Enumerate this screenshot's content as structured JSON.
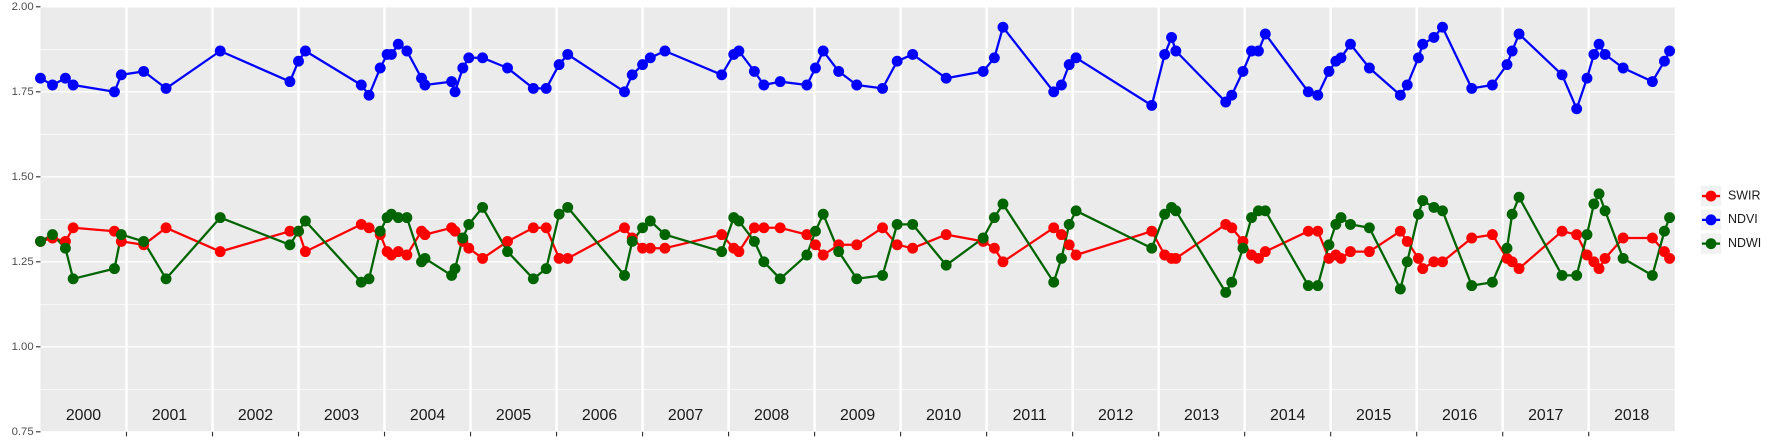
{
  "chart_data": {
    "type": "line",
    "xlim": [
      2000,
      2019
    ],
    "xticks": [
      2001,
      2002,
      2003,
      2004,
      2005,
      2006,
      2007,
      2008,
      2009,
      2010,
      2011,
      2012,
      2013,
      2014,
      2015,
      2016,
      2017,
      2018
    ],
    "year_labels": [
      "2000",
      "2001",
      "2002",
      "2003",
      "2004",
      "2005",
      "2006",
      "2007",
      "2008",
      "2009",
      "2010",
      "2011",
      "2012",
      "2013",
      "2014",
      "2015",
      "2016",
      "2017",
      "2018"
    ],
    "ylim": [
      0.75,
      2.0
    ],
    "yticks": [
      {
        "value": 0.75,
        "label": "0.75"
      },
      {
        "value": 1.0,
        "label": "1.00"
      },
      {
        "value": 1.25,
        "label": "1.25"
      },
      {
        "value": 1.5,
        "label": "1.50"
      },
      {
        "value": 1.75,
        "label": "1.75"
      },
      {
        "value": 2.0,
        "label": "2.00"
      }
    ],
    "grid": true,
    "legend": "right",
    "x": [
      2000,
      2000.14,
      2000.29,
      2000.38,
      2000.86,
      2000.94,
      2001.2,
      2001.46,
      2002.09,
      2002.9,
      2003,
      2003.08,
      2003.73,
      2003.82,
      2003.95,
      2004.03,
      2004.08,
      2004.16,
      2004.26,
      2004.43,
      2004.47,
      2004.78,
      2004.82,
      2004.91,
      2004.98,
      2005.14,
      2005.43,
      2005.73,
      2005.88,
      2006.03,
      2006.13,
      2006.79,
      2006.88,
      2007,
      2007.09,
      2007.26,
      2007.92,
      2008.06,
      2008.12,
      2008.3,
      2008.41,
      2008.6,
      2008.91,
      2009.01,
      2009.1,
      2009.28,
      2009.49,
      2009.79,
      2009.96,
      2010.14,
      2010.53,
      2010.96,
      2011.09,
      2011.19,
      2011.78,
      2011.87,
      2011.96,
      2012.04,
      2012.92,
      2013.07,
      2013.15,
      2013.2,
      2013.78,
      2013.85,
      2013.98,
      2014.08,
      2014.16,
      2014.24,
      2014.74,
      2014.85,
      2014.98,
      2015.06,
      2015.12,
      2015.23,
      2015.45,
      2015.81,
      2015.89,
      2016.02,
      2016.07,
      2016.2,
      2016.3,
      2016.64,
      2016.88,
      2017.05,
      2017.11,
      2017.19,
      2017.69,
      2017.86,
      2017.98,
      2018.06,
      2018.12,
      2018.19,
      2018.4,
      2018.74,
      2018.88,
      2018.94
    ],
    "series": [
      {
        "name": "SWIR",
        "color": "#ff0000",
        "values": [
          1.31,
          1.32,
          1.31,
          1.35,
          1.34,
          1.31,
          1.3,
          1.35,
          1.28,
          1.34,
          1.34,
          1.28,
          1.36,
          1.35,
          1.33,
          1.28,
          1.27,
          1.28,
          1.27,
          1.34,
          1.33,
          1.35,
          1.34,
          1.31,
          1.29,
          1.26,
          1.31,
          1.35,
          1.35,
          1.26,
          1.26,
          1.35,
          1.32,
          1.29,
          1.29,
          1.29,
          1.33,
          1.29,
          1.28,
          1.35,
          1.35,
          1.35,
          1.33,
          1.3,
          1.27,
          1.3,
          1.3,
          1.35,
          1.3,
          1.29,
          1.33,
          1.31,
          1.29,
          1.25,
          1.35,
          1.33,
          1.3,
          1.27,
          1.34,
          1.27,
          1.26,
          1.26,
          1.36,
          1.35,
          1.31,
          1.27,
          1.26,
          1.28,
          1.34,
          1.34,
          1.26,
          1.27,
          1.26,
          1.28,
          1.28,
          1.34,
          1.31,
          1.26,
          1.23,
          1.25,
          1.25,
          1.32,
          1.33,
          1.26,
          1.25,
          1.23,
          1.34,
          1.33,
          1.27,
          1.25,
          1.23,
          1.26,
          1.32,
          1.32,
          1.28,
          1.26
        ]
      },
      {
        "name": "NDVI",
        "color": "#0000ff",
        "values": [
          1.79,
          1.77,
          1.79,
          1.77,
          1.75,
          1.8,
          1.81,
          1.76,
          1.87,
          1.78,
          1.84,
          1.87,
          1.77,
          1.74,
          1.82,
          1.86,
          1.86,
          1.89,
          1.87,
          1.79,
          1.77,
          1.78,
          1.75,
          1.82,
          1.85,
          1.85,
          1.82,
          1.76,
          1.76,
          1.83,
          1.86,
          1.75,
          1.8,
          1.83,
          1.85,
          1.87,
          1.8,
          1.86,
          1.87,
          1.81,
          1.77,
          1.78,
          1.77,
          1.82,
          1.87,
          1.81,
          1.77,
          1.76,
          1.84,
          1.86,
          1.79,
          1.81,
          1.85,
          1.94,
          1.75,
          1.77,
          1.83,
          1.85,
          1.71,
          1.86,
          1.91,
          1.87,
          1.72,
          1.74,
          1.81,
          1.87,
          1.87,
          1.92,
          1.75,
          1.74,
          1.81,
          1.84,
          1.85,
          1.89,
          1.82,
          1.74,
          1.77,
          1.85,
          1.89,
          1.91,
          1.94,
          1.76,
          1.77,
          1.83,
          1.87,
          1.92,
          1.8,
          1.7,
          1.79,
          1.86,
          1.89,
          1.86,
          1.82,
          1.78,
          1.84,
          1.87
        ]
      },
      {
        "name": "NDWI",
        "color": "#006400",
        "values": [
          1.31,
          1.33,
          1.29,
          1.2,
          1.23,
          1.33,
          1.31,
          1.2,
          1.38,
          1.3,
          1.34,
          1.37,
          1.19,
          1.2,
          1.34,
          1.38,
          1.39,
          1.38,
          1.38,
          1.25,
          1.26,
          1.21,
          1.23,
          1.32,
          1.36,
          1.41,
          1.28,
          1.2,
          1.23,
          1.39,
          1.41,
          1.21,
          1.31,
          1.35,
          1.37,
          1.33,
          1.28,
          1.38,
          1.37,
          1.31,
          1.25,
          1.2,
          1.27,
          1.34,
          1.39,
          1.28,
          1.2,
          1.21,
          1.36,
          1.36,
          1.24,
          1.32,
          1.38,
          1.42,
          1.19,
          1.26,
          1.36,
          1.4,
          1.29,
          1.39,
          1.41,
          1.4,
          1.16,
          1.19,
          1.29,
          1.38,
          1.4,
          1.4,
          1.18,
          1.18,
          1.3,
          1.36,
          1.38,
          1.36,
          1.35,
          1.17,
          1.25,
          1.39,
          1.43,
          1.41,
          1.4,
          1.18,
          1.19,
          1.29,
          1.39,
          1.44,
          1.21,
          1.21,
          1.33,
          1.42,
          1.45,
          1.4,
          1.26,
          1.21,
          1.34,
          1.38
        ]
      }
    ]
  }
}
